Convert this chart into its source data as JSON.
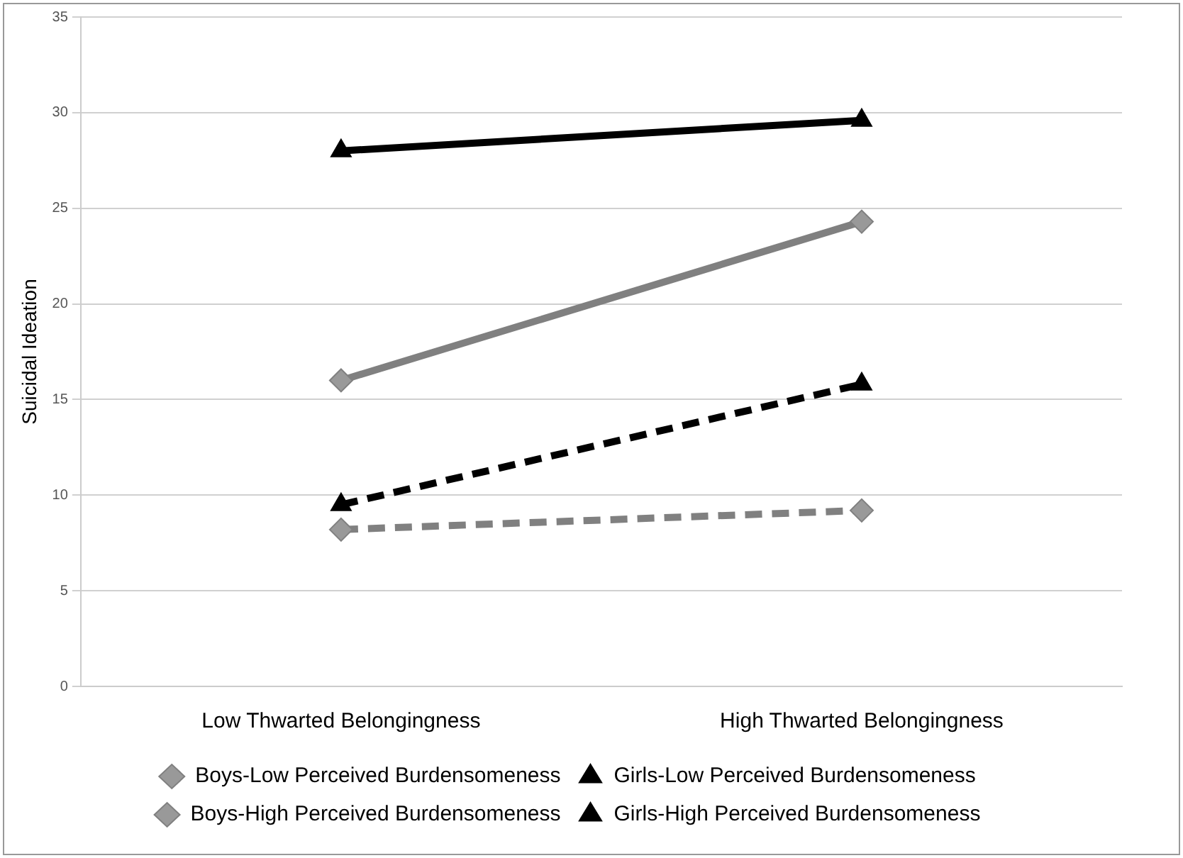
{
  "chart_data": {
    "type": "line",
    "ylabel": "Suicidal Ideation",
    "categories": [
      "Low Thwarted Belongingness",
      "High Thwarted Belongingness"
    ],
    "series": [
      {
        "name": "Boys-Low Perceived Burdensomeness",
        "color": "#808080",
        "values": [
          8.2,
          9.2
        ],
        "marker": "diamond",
        "line_style": "dashed"
      },
      {
        "name": "Girls-Low Perceived Burdensomeness",
        "color": "#000000",
        "values": [
          9.5,
          15.8
        ],
        "marker": "triangle",
        "line_style": "dashed"
      },
      {
        "name": "Boys-High Perceived Burdensomeness",
        "color": "#808080",
        "values": [
          16.0,
          24.3
        ],
        "marker": "diamond",
        "line_style": "solid"
      },
      {
        "name": "Girls-High Perceived Burdensomeness",
        "color": "#000000",
        "values": [
          28.0,
          29.6
        ],
        "marker": "triangle",
        "line_style": "solid"
      }
    ],
    "ylim": [
      0,
      35
    ],
    "yticks": [
      0,
      5,
      10,
      15,
      20,
      25,
      30,
      35
    ],
    "grid": "y",
    "legend": "bottom"
  }
}
